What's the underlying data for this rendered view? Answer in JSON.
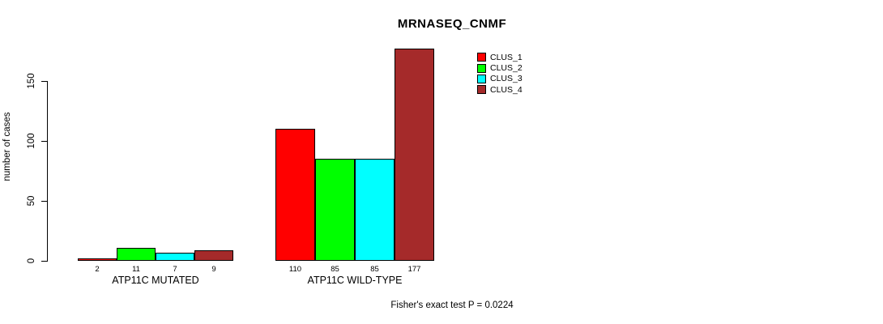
{
  "chart_data": {
    "type": "bar",
    "title": "MRNASEQ_CNMF",
    "ylabel": "number of cases",
    "xlabel": "",
    "yticks": [
      0,
      50,
      100,
      150
    ],
    "ylim": [
      0,
      180
    ],
    "grid": false,
    "legend_position": "top-right",
    "categories": [
      "ATP11C MUTATED",
      "ATP11C WILD-TYPE"
    ],
    "series": [
      {
        "name": "CLUS_1",
        "color": "#FF0000",
        "values": [
          2,
          110
        ]
      },
      {
        "name": "CLUS_2",
        "color": "#00FF00",
        "values": [
          11,
          85
        ]
      },
      {
        "name": "CLUS_3",
        "color": "#00FFFF",
        "values": [
          7,
          85
        ]
      },
      {
        "name": "CLUS_4",
        "color": "#A52A2A",
        "values": [
          9,
          177
        ]
      }
    ],
    "bar_value_labels": [
      [
        "2",
        "11",
        "7",
        "9"
      ],
      [
        "110",
        "85",
        "85",
        "177"
      ]
    ],
    "footnote": "Fisher's exact test P = 0.0224",
    "axis_color": "#000000",
    "bar_border_color": "#000000"
  }
}
